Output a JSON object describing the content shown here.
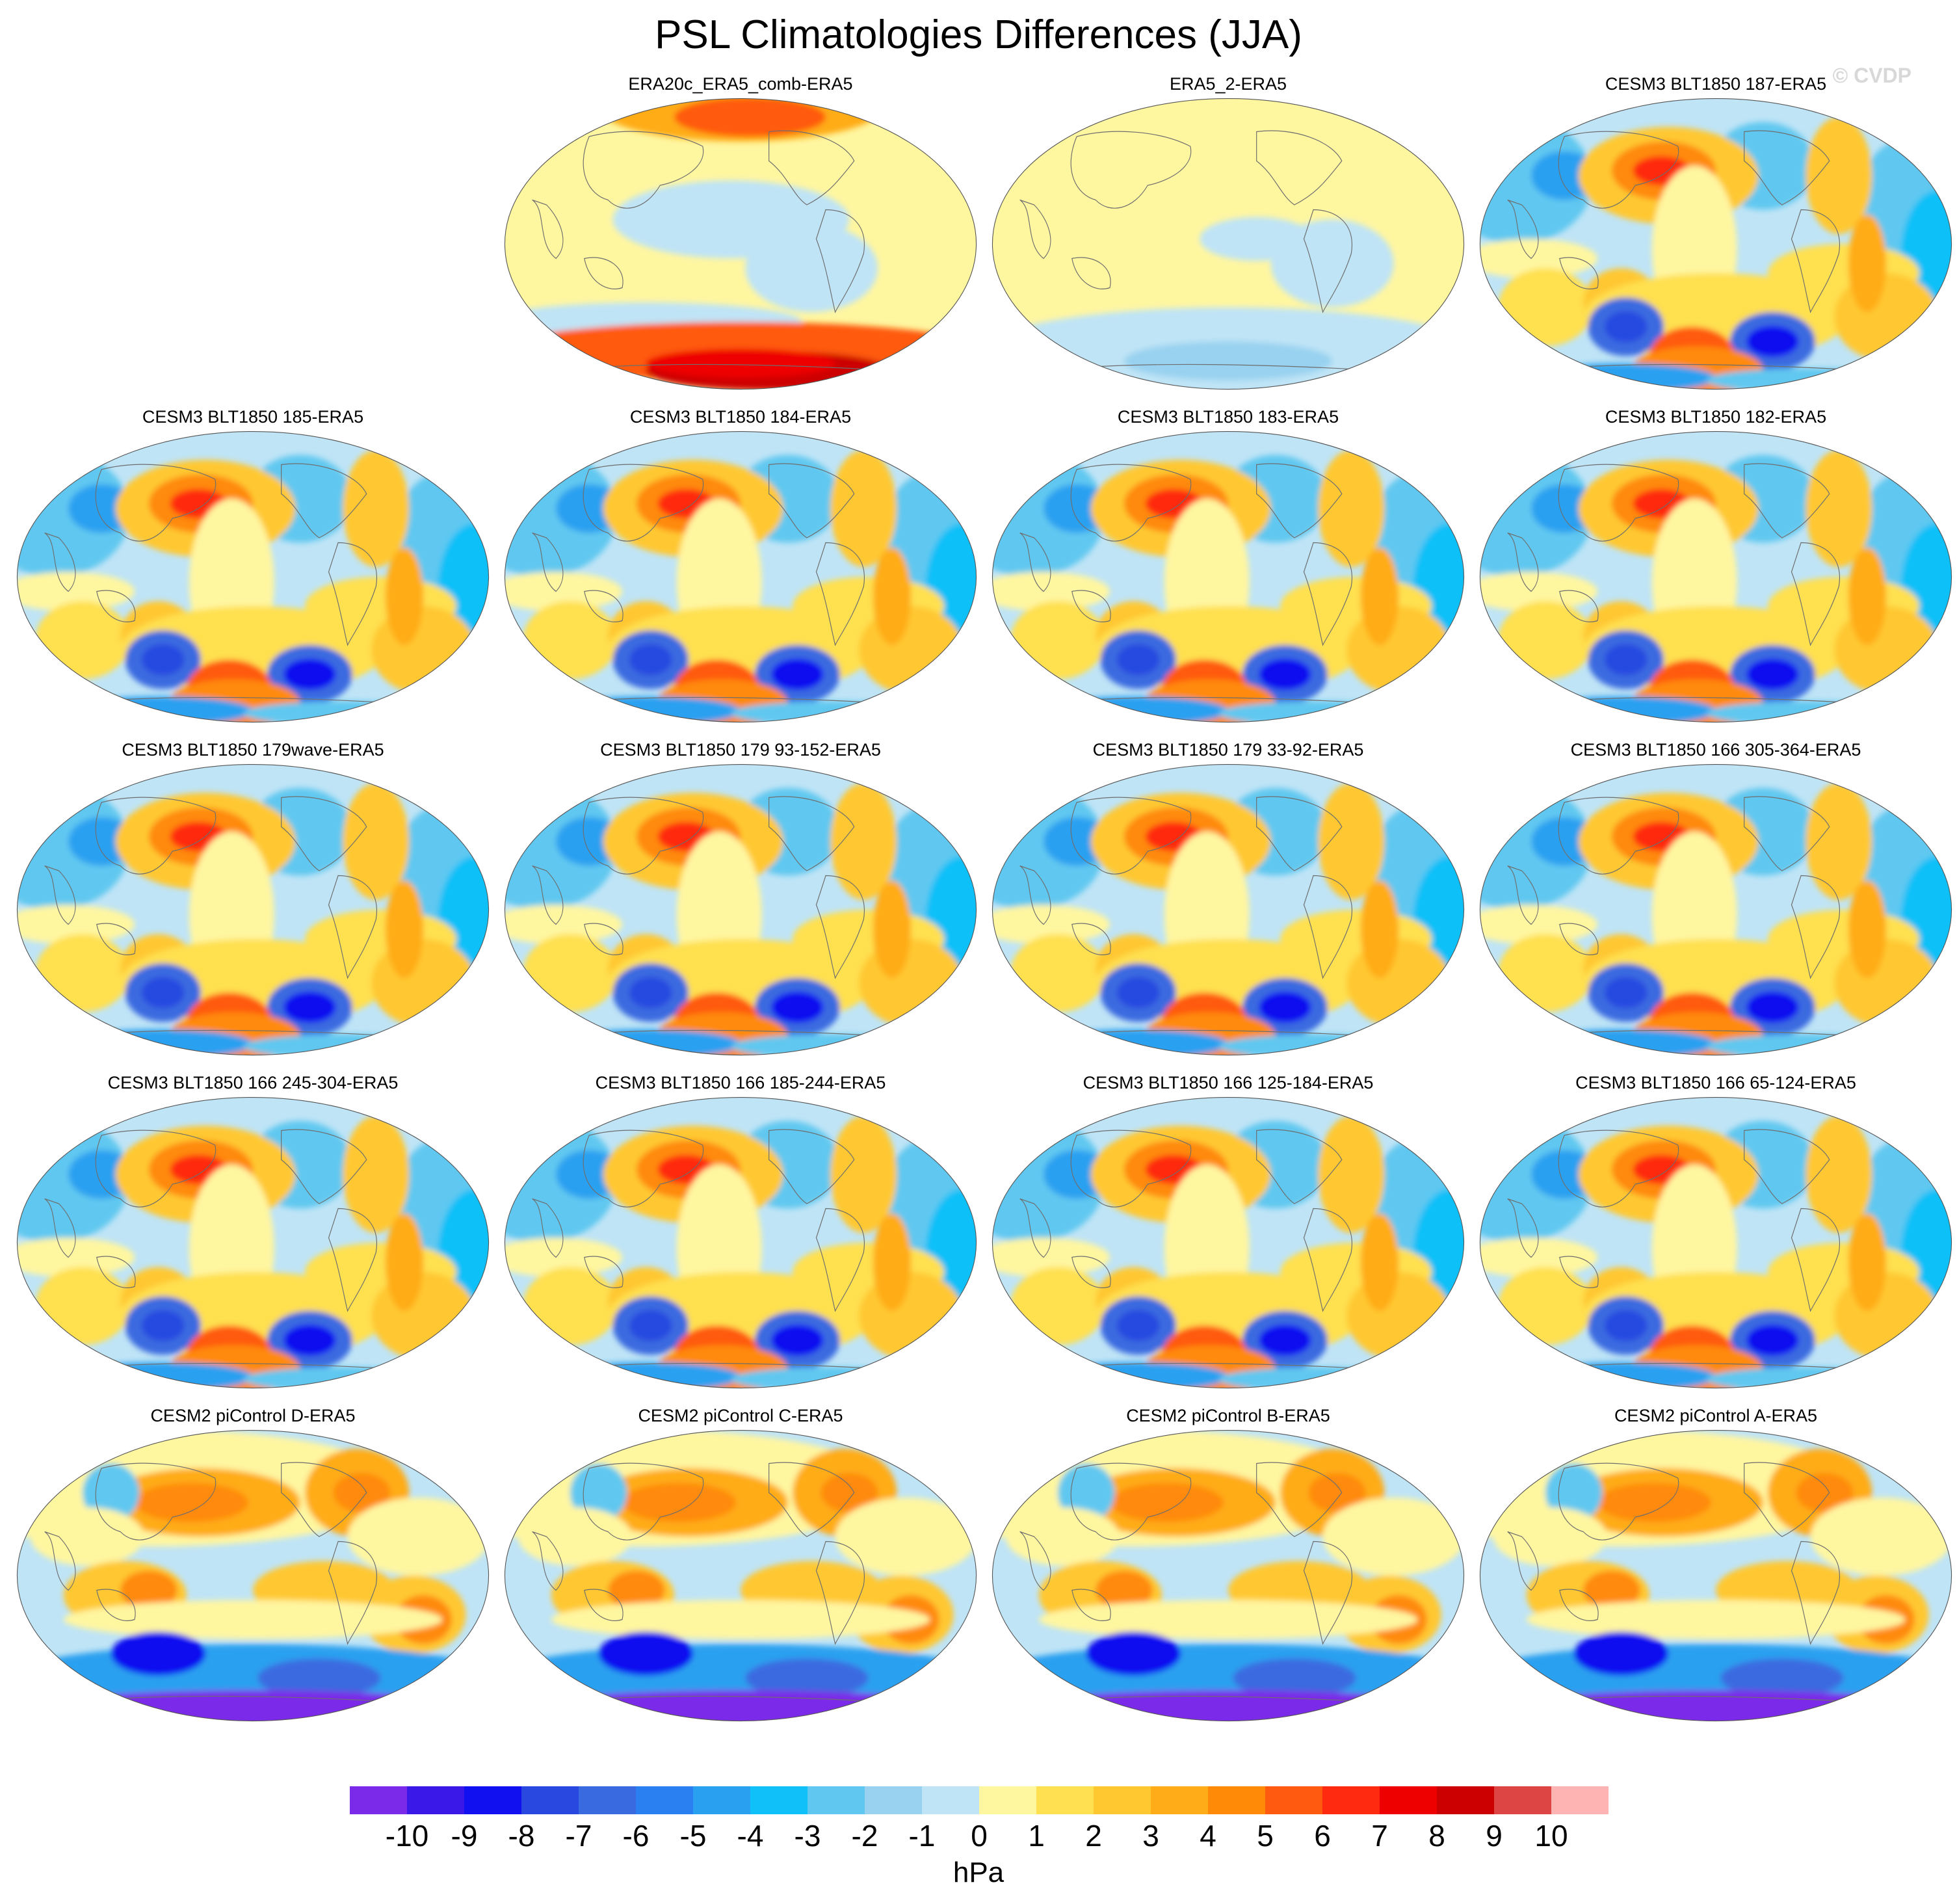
{
  "page": {
    "title": "PSL Climatologies Differences (JJA)",
    "credit": "© CVDP"
  },
  "chart_data": {
    "type": "heatmap",
    "projection": "global map panels",
    "units": "hPa",
    "colorbar": {
      "ticks": [
        "-10",
        "-9",
        "-8",
        "-7",
        "-6",
        "-5",
        "-4",
        "-3",
        "-2",
        "-1",
        "0",
        "1",
        "2",
        "3",
        "4",
        "5",
        "6",
        "7",
        "8",
        "9",
        "10"
      ],
      "colors": [
        "#7a2ae8",
        "#3a18e8",
        "#1010f0",
        "#2848e0",
        "#3a6ae0",
        "#2a80f0",
        "#2aa0f0",
        "#10c0f8",
        "#60c8f0",
        "#98d2f0",
        "#bfe4f6",
        "#fff6a0",
        "#ffe050",
        "#ffc830",
        "#ffac18",
        "#ff8a08",
        "#ff5a10",
        "#ff2a10",
        "#ee0000",
        "#cc0000",
        "#dd4444",
        "#ffb4b4"
      ]
    },
    "panels": [
      {
        "title": "ERA20c_ERA5_comb-ERA5",
        "style": "era20c"
      },
      {
        "title": "ERA5_2-ERA5",
        "style": "era5"
      },
      {
        "title": "CESM3 BLT1850 187-ERA5",
        "style": "cesm3"
      },
      {
        "title": "CESM3 BLT1850 185-ERA5",
        "style": "cesm3"
      },
      {
        "title": "CESM3 BLT1850 184-ERA5",
        "style": "cesm3"
      },
      {
        "title": "CESM3 BLT1850 183-ERA5",
        "style": "cesm3"
      },
      {
        "title": "CESM3 BLT1850 182-ERA5",
        "style": "cesm3"
      },
      {
        "title": "CESM3 BLT1850 179wave-ERA5",
        "style": "cesm3"
      },
      {
        "title": "CESM3 BLT1850 179 93-152-ERA5",
        "style": "cesm3"
      },
      {
        "title": "CESM3 BLT1850 179 33-92-ERA5",
        "style": "cesm3"
      },
      {
        "title": "CESM3 BLT1850 166 305-364-ERA5",
        "style": "cesm3"
      },
      {
        "title": "CESM3 BLT1850 166 245-304-ERA5",
        "style": "cesm3"
      },
      {
        "title": "CESM3 BLT1850 166 185-244-ERA5",
        "style": "cesm3"
      },
      {
        "title": "CESM3 BLT1850 166 125-184-ERA5",
        "style": "cesm3"
      },
      {
        "title": "CESM3 BLT1850 166 65-124-ERA5",
        "style": "cesm3"
      },
      {
        "title": "CESM2 piControl D-ERA5",
        "style": "cesm2"
      },
      {
        "title": "CESM2 piControl C-ERA5",
        "style": "cesm2"
      },
      {
        "title": "CESM2 piControl B-ERA5",
        "style": "cesm2"
      },
      {
        "title": "CESM2 piControl A-ERA5",
        "style": "cesm2"
      }
    ]
  }
}
